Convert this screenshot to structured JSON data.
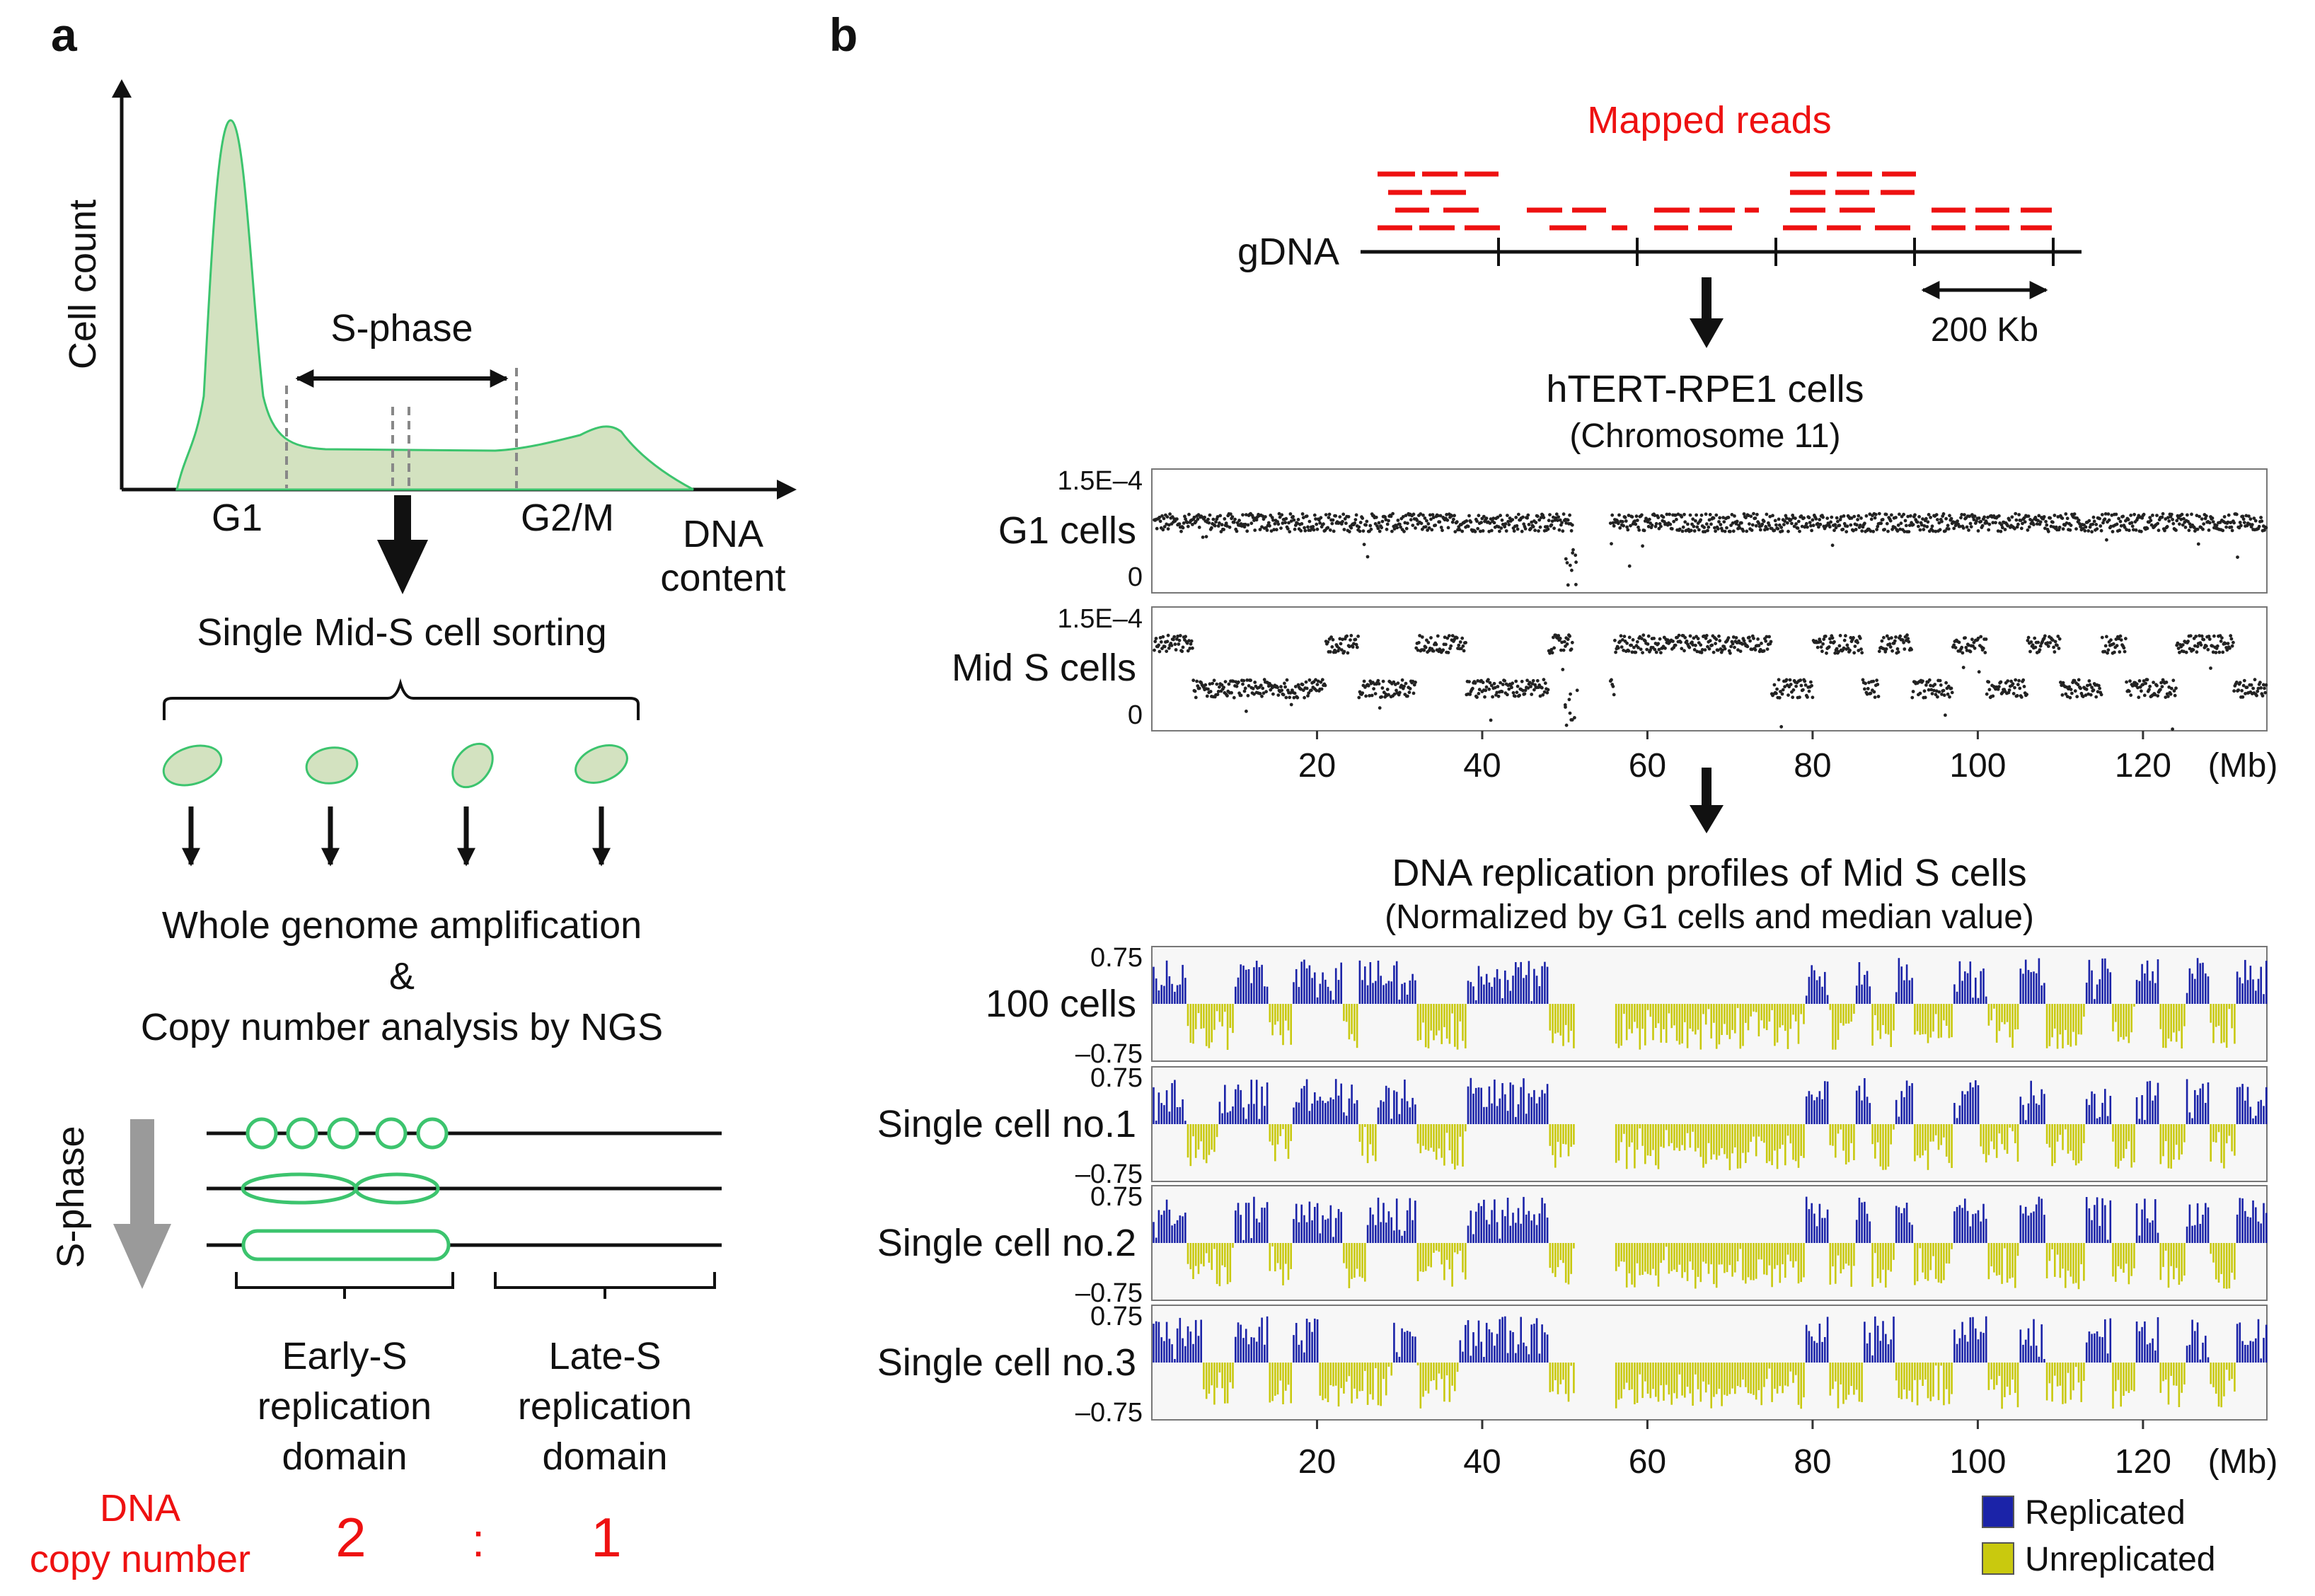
{
  "panel_a": {
    "label": "a",
    "histogram": {
      "y_axis_label": "Cell count",
      "x_axis_label_line1": "DNA",
      "x_axis_label_line2": "content",
      "sphase_label": "S-phase",
      "g1_label": "G1",
      "g2m_label": "G2/M",
      "fill_color": "#d3e2c0",
      "line_color": "#3cc46e"
    },
    "sorting_label": "Single Mid-S cell sorting",
    "wga_line1": "Whole genome amplification",
    "wga_line2": "&",
    "wga_line3": "Copy number analysis by NGS",
    "schematic": {
      "sphase_arrow_label": "S-phase",
      "early_line1": "Early-S",
      "early_line2": "replication",
      "early_line3": "domain",
      "late_line1": "Late-S",
      "late_line2": "replication",
      "late_line3": "domain"
    },
    "copy_number": {
      "label_line1": "DNA",
      "label_line2": "copy number",
      "early_value": "2",
      "separator": ":",
      "late_value": "1"
    }
  },
  "panel_b": {
    "label": "b",
    "mapped_reads_label": "Mapped reads",
    "gdna_label": "gDNA",
    "scale_label": "200 Kb",
    "cell_line_label": "hTERT-RPE1 cells",
    "chromosome_label": "(Chromosome 11)",
    "profiles_title": "DNA replication profiles of Mid S cells",
    "profiles_subtitle": "(Normalized by G1 cells and median value)",
    "legend": {
      "replicated_label": "Replicated",
      "unreplicated_label": "Unreplicated",
      "replicated_color": "#1b23a8",
      "unreplicated_color": "#c9c90e"
    },
    "colors": {
      "accent_red": "#ee1111"
    }
  },
  "chart_data": [
    {
      "type": "scatter",
      "title": "hTERT-RPE1 cells (Chromosome 11)",
      "xlabel": "(Mb)",
      "x_ticks": [
        20,
        40,
        60,
        80,
        100,
        120
      ],
      "xlim": [
        0,
        135
      ],
      "gap_mb": [
        51,
        55.5
      ],
      "series": [
        {
          "name": "G1 cells",
          "ymax_label": "1.5E–4",
          "ymin_label": "0",
          "ylim": [
            0,
            1.5
          ],
          "baseline": 0.85,
          "domain_breaks": [
            0,
            135
          ],
          "amplitude": 0
        },
        {
          "name": "Mid S cells",
          "ymax_label": "1.5E–4",
          "ymin_label": "0",
          "ylim": [
            0,
            1.5
          ],
          "baseline": 0.78,
          "domain_breaks": [
            0,
            5,
            21,
            25,
            32,
            38,
            48,
            51,
            56,
            75,
            80,
            86,
            88,
            92,
            97,
            101,
            106,
            110,
            115,
            118,
            124,
            131,
            135
          ],
          "amplitude": 0.3
        }
      ]
    },
    {
      "type": "bar",
      "title": "DNA replication profiles of Mid S cells",
      "subtitle": "(Normalized by G1 cells and median value)",
      "xlabel": "(Mb)",
      "x_ticks": [
        20,
        40,
        60,
        80,
        100,
        120
      ],
      "xlim": [
        0,
        135
      ],
      "ylim": [
        -0.75,
        0.75
      ],
      "ytick_top_label": "0.75",
      "ytick_bottom_label": "–0.75",
      "gap_mb": [
        51,
        56
      ],
      "series": [
        {
          "name": "100 cells",
          "domain_breaks": [
            0,
            4,
            10,
            14,
            17,
            23,
            25,
            32,
            38,
            48,
            51,
            56,
            79,
            82,
            85,
            87,
            90,
            92,
            97,
            101,
            105,
            108,
            113,
            116,
            119,
            122,
            125,
            128,
            131,
            135
          ]
        },
        {
          "name": "Single cell no.1",
          "domain_breaks": [
            0,
            4,
            8,
            14,
            17,
            25,
            27,
            32,
            38,
            48,
            51,
            56,
            79,
            82,
            85,
            87,
            90,
            92,
            97,
            100,
            105,
            108,
            113,
            116,
            119,
            122,
            125,
            128,
            131,
            135
          ]
        },
        {
          "name": "Single cell no.2",
          "domain_breaks": [
            0,
            4,
            10,
            14,
            17,
            23,
            26,
            32,
            38,
            48,
            51,
            56,
            79,
            82,
            85,
            87,
            90,
            92,
            97,
            101,
            105,
            108,
            113,
            116,
            119,
            122,
            125,
            128,
            131,
            135
          ]
        },
        {
          "name": "Single cell no.3",
          "domain_breaks": [
            0,
            6,
            10,
            14,
            17,
            20,
            29,
            32,
            37,
            48,
            51,
            56,
            79,
            82,
            86,
            90,
            97,
            101,
            105,
            108,
            113,
            116,
            119,
            122,
            125,
            128,
            131,
            135
          ]
        }
      ]
    }
  ]
}
